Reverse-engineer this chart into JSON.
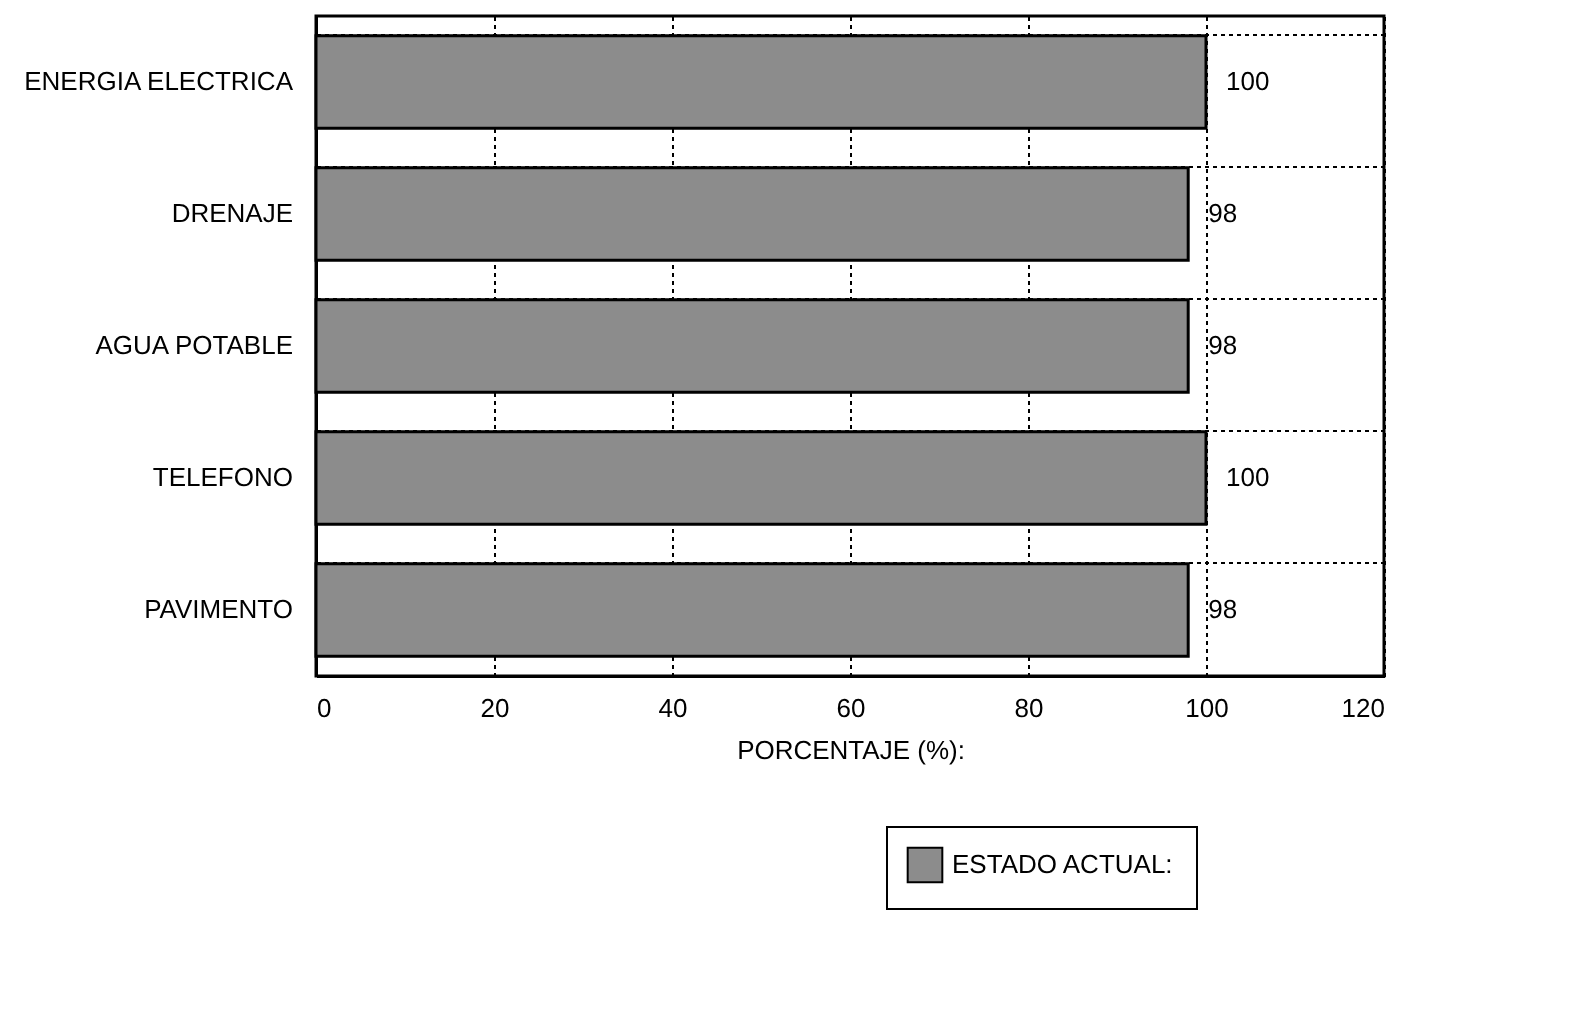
{
  "chart_data": {
    "type": "bar",
    "orientation": "horizontal",
    "categories": [
      "ENERGIA ELECTRICA",
      "DRENAJE",
      "AGUA POTABLE",
      "TELEFONO",
      "PAVIMENTO"
    ],
    "series": [
      {
        "name": "ESTADO ACTUAL:",
        "color": "#8c8c8c",
        "values": [
          100,
          98,
          98,
          100,
          98
        ]
      }
    ],
    "xlabel": "PORCENTAJE (%):",
    "xlim": [
      0,
      120
    ],
    "xticks": [
      0,
      20,
      40,
      60,
      80,
      100,
      120
    ],
    "grid": true,
    "data_labels": true,
    "legend": "bottom right"
  }
}
